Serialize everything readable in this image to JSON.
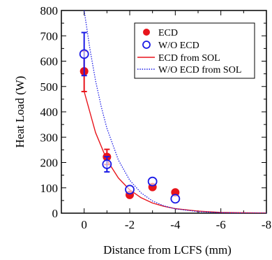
{
  "chart_data": {
    "type": "scatter",
    "xlabel": "Distance from LCFS (mm)",
    "ylabel": "Heat Load (W)",
    "xlim": [
      1,
      -8
    ],
    "ylim": [
      0,
      800
    ],
    "x_ticks": [
      0,
      -2,
      -4,
      -6,
      -8
    ],
    "y_ticks": [
      0,
      100,
      200,
      300,
      400,
      500,
      600,
      700,
      800
    ],
    "x_tick_labels": [
      "0",
      "-2",
      "-4",
      "-6",
      "-8"
    ],
    "y_tick_labels": [
      "0",
      "100",
      "200",
      "300",
      "400",
      "500",
      "600",
      "700",
      "800"
    ],
    "legend_position": "top-right",
    "series": [
      {
        "name": "ECD",
        "kind": "points",
        "marker": "filled-circle",
        "color": "#e8141b",
        "x": [
          0,
          -1,
          -2,
          -3,
          -4
        ],
        "y": [
          560,
          222,
          72,
          103,
          82
        ],
        "err": [
          80,
          30,
          0,
          0,
          0
        ]
      },
      {
        "name": "W/O ECD",
        "kind": "points",
        "marker": "open-circle",
        "color": "#1a1ae6",
        "x": [
          0,
          -1,
          -2,
          -3,
          -4
        ],
        "y": [
          628,
          193,
          93,
          125,
          57
        ],
        "err": [
          85,
          30,
          0,
          0,
          0
        ]
      },
      {
        "name": "ECD from SOL",
        "kind": "line",
        "style": "solid",
        "color": "#e8141b",
        "x": [
          0,
          -0.5,
          -1,
          -1.5,
          -2,
          -2.5,
          -3,
          -3.5,
          -4,
          -5,
          -6,
          -7,
          -8
        ],
        "y": [
          480,
          318,
          210,
          139,
          92,
          61,
          40,
          27,
          18,
          8,
          3,
          1.5,
          0.5
        ]
      },
      {
        "name": "W/O ECD from SOL",
        "kind": "line",
        "style": "dotted",
        "color": "#1a1ae6",
        "x": [
          0,
          -0.25,
          -0.5,
          -0.75,
          -1,
          -1.5,
          -2,
          -2.5,
          -3,
          -3.5,
          -4,
          -5,
          -6,
          -7,
          -8
        ],
        "y": [
          800,
          650,
          523,
          420,
          335,
          210,
          130,
          80,
          48,
          29,
          17,
          6,
          2,
          0.8,
          0.3
        ]
      }
    ]
  }
}
